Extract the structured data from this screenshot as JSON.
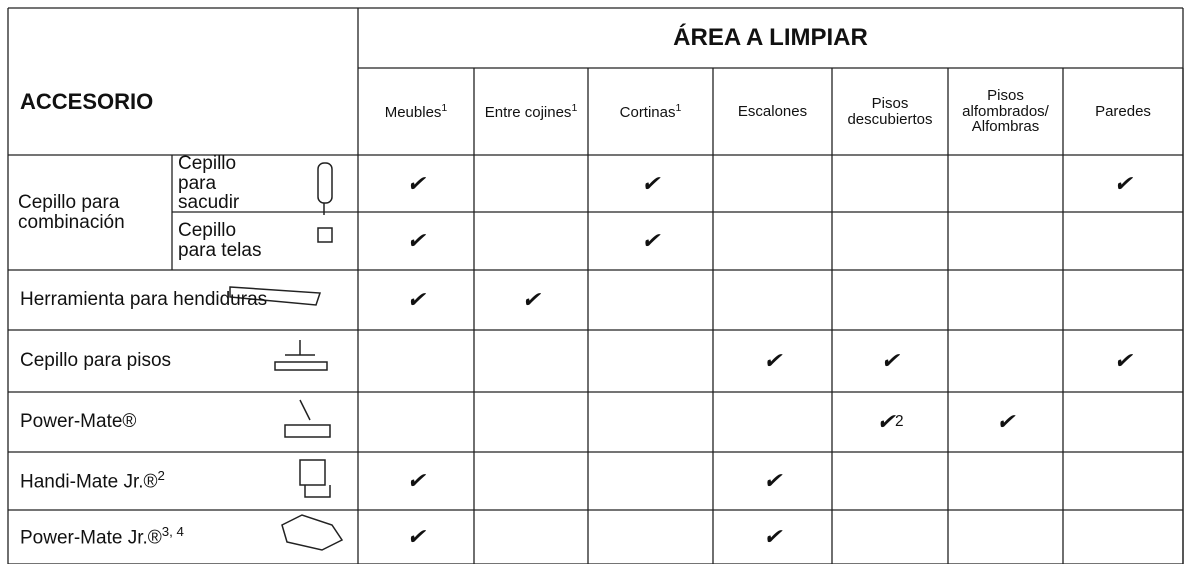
{
  "header": {
    "area_title": "ÁREA A LIMPIAR",
    "accessory_title": "ACCESORIO"
  },
  "columns": [
    {
      "text": "Meubles",
      "sup": "1"
    },
    {
      "text": "Entre cojines",
      "sup": "1"
    },
    {
      "text": "Cortinas",
      "sup": "1"
    },
    {
      "text": "Escalones"
    },
    {
      "text": "Pisos descubiertos"
    },
    {
      "text": "Pisos alfombrados/ Alfombras"
    },
    {
      "text": "Paredes"
    }
  ],
  "group": {
    "label": "Cepillo para combinación"
  },
  "rows": [
    {
      "label": "Cepillo para sacudir",
      "cells": [
        "✔",
        null,
        "✔",
        null,
        null,
        null,
        "✔"
      ]
    },
    {
      "label": "Cepillo para telas",
      "cells": [
        "✔",
        null,
        "✔",
        null,
        null,
        null,
        null
      ]
    },
    {
      "label": "Herramienta para hendiduras",
      "cells": [
        "✔",
        "✔",
        null,
        null,
        null,
        null,
        null
      ]
    },
    {
      "label": "Cepillo para pisos",
      "cells": [
        null,
        null,
        null,
        "✔",
        "✔",
        null,
        "✔"
      ]
    },
    {
      "label": "Power-Mate®",
      "cells": [
        null,
        null,
        null,
        null,
        {
          "text": "✔",
          "sup": "2"
        },
        "✔",
        null
      ]
    },
    {
      "label": "Handi-Mate Jr.®",
      "sup": "2",
      "cells": [
        "✔",
        null,
        null,
        "✔",
        null,
        null,
        null
      ]
    },
    {
      "label": "Power-Mate Jr.®",
      "sup": "3, 4",
      "cells": [
        "✔",
        null,
        null,
        "✔",
        null,
        null,
        null
      ]
    }
  ]
}
